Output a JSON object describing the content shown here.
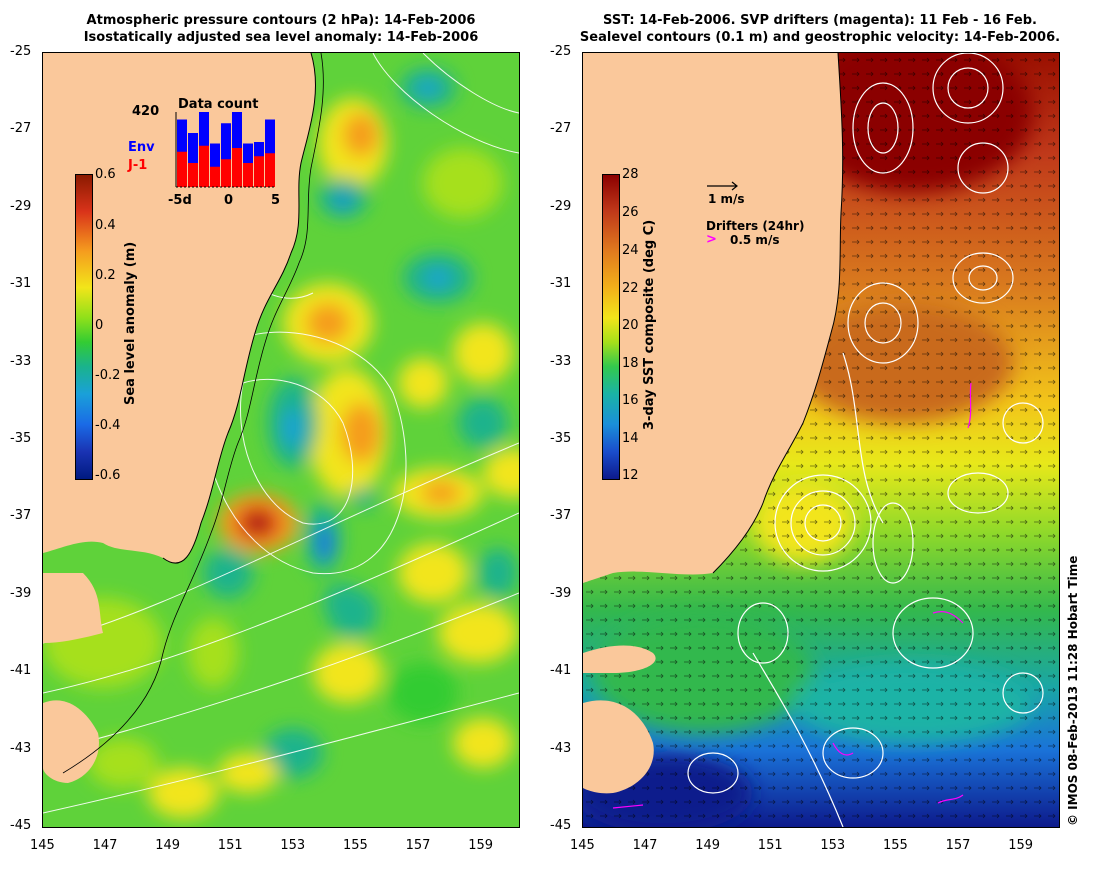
{
  "left_panel": {
    "title_line1": "Atmospheric pressure contours (2 hPa): 14-Feb-2006",
    "title_line2": "Isostatically adjusted sea level anomaly: 14-Feb-2006",
    "colorbar": {
      "label": "Sea level anomaly (m)",
      "ticks": [
        "0.6",
        "0.4",
        "0.2",
        "0",
        "-0.2",
        "-0.4",
        "-0.6"
      ],
      "colors": [
        "#8b1a00",
        "#d9331a",
        "#f59c1e",
        "#f2e51a",
        "#8fe01a",
        "#33cc33",
        "#1ab38c",
        "#1aa0d9",
        "#1a6be6",
        "#1a33b3",
        "#001a80"
      ]
    },
    "inset": {
      "title": "Data count",
      "max_label": "420",
      "series_env": "Env",
      "series_j1": "J-1",
      "xticks": [
        "-5d",
        "0",
        "5"
      ],
      "env_color": "#0000ff",
      "j1_color": "#ff0000",
      "env_counts": [
        0.9,
        0.72,
        1.0,
        0.58,
        0.85,
        1.0,
        0.58,
        0.6,
        0.9
      ],
      "j1_counts": [
        0.47,
        0.32,
        0.55,
        0.27,
        0.37,
        0.52,
        0.32,
        0.41,
        0.45
      ]
    }
  },
  "right_panel": {
    "title_line1": "SST: 14-Feb-2006. SVP drifters (magenta): 11 Feb - 16 Feb.",
    "title_line2": "Sealevel contours (0.1 m) and geostrophic velocity: 14-Feb-2006.",
    "colorbar": {
      "label": "3-day SST composite (deg C)",
      "ticks": [
        "28",
        "26",
        "24",
        "22",
        "20",
        "18",
        "16",
        "14",
        "12"
      ],
      "colors": [
        "#8b0000",
        "#c0391a",
        "#e07a1e",
        "#f2b01a",
        "#f2e51a",
        "#a6e01a",
        "#33c94d",
        "#1ab3a6",
        "#1a8fd9",
        "#1a4dcc",
        "#0d1a8c"
      ]
    },
    "legend_velocity": "1 m/s",
    "legend_drifters_title": "Drifters (24hr)",
    "legend_drifters_scale": "0.5 m/s"
  },
  "axes": {
    "lat_ticks": [
      "-25",
      "-27",
      "-29",
      "-31",
      "-33",
      "-35",
      "-37",
      "-39",
      "-41",
      "-43",
      "-45"
    ],
    "lon_ticks": [
      "145",
      "147",
      "149",
      "151",
      "153",
      "155",
      "157",
      "159"
    ]
  },
  "colors": {
    "land": "#fac89b",
    "contour": "#ffffff",
    "drifter": "#ff00ff"
  },
  "credit": "© IMOS 08-Feb-2013 11:28 Hobart Time"
}
